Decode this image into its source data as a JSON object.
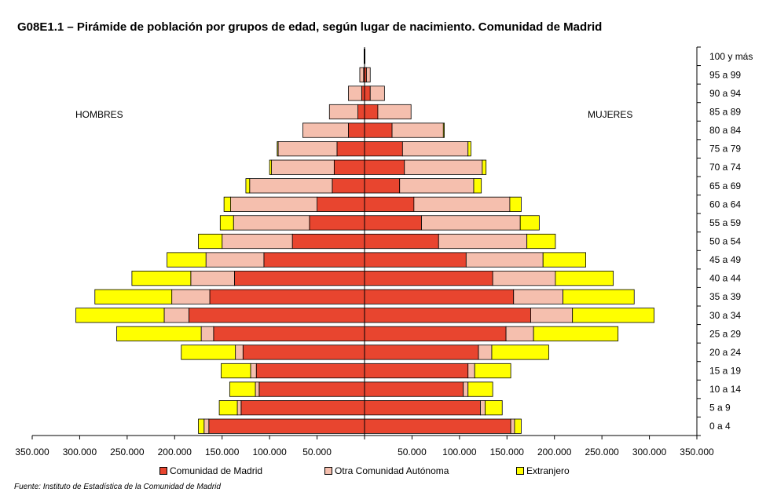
{
  "title": "G08E1.1 – Pirámide de población por grupos de edad, según lugar de nacimiento. Comunidad de Madrid",
  "source": "Fuente: Instituto de Estadística de la Comunidad de Madrid",
  "colors": {
    "madrid": "#e8452f",
    "otra": "#f5bfae",
    "extranjero": "#ffff00"
  },
  "chart_data": {
    "type": "bar",
    "orientation": "horizontal-population-pyramid",
    "side_labels": {
      "left": "HOMBRES",
      "right": "MUJERES"
    },
    "categories": [
      "0 a 4",
      "5 a 9",
      "10 a 14",
      "15 a 19",
      "20 a 24",
      "25 a 29",
      "30 a 34",
      "35 a 39",
      "40 a 44",
      "45 a 49",
      "50 a 54",
      "55 a 59",
      "60 a 64",
      "65 a 69",
      "70 a 74",
      "75 a 79",
      "80 a 84",
      "85 a 89",
      "90 a 94",
      "95 a 99",
      "100 y más"
    ],
    "xlim": [
      -350000,
      350000
    ],
    "x_tick_values": [
      -350000,
      -300000,
      -250000,
      -200000,
      -150000,
      -100000,
      -50000,
      50000,
      100000,
      150000,
      200000,
      250000,
      300000,
      350000
    ],
    "x_tick_labels": [
      "350.000",
      "300.000",
      "250.000",
      "200.000",
      "150.000",
      "100.000",
      "50.000",
      "50.000",
      "100.000",
      "150.000",
      "200.000",
      "250.000",
      "300.000",
      "350.000"
    ],
    "series": [
      {
        "name": "Comunidad de Madrid",
        "key": "madrid",
        "hombres": [
          164000,
          130000,
          111000,
          114000,
          128000,
          159000,
          185000,
          163000,
          137000,
          106000,
          76000,
          58000,
          50000,
          34000,
          32000,
          29000,
          17000,
          7000,
          3000,
          1000,
          500
        ],
        "mujeres": [
          154000,
          122000,
          104000,
          109000,
          120000,
          149000,
          175000,
          157000,
          135000,
          107000,
          78000,
          60000,
          52000,
          37000,
          42000,
          40000,
          29000,
          14000,
          6000,
          2000,
          500
        ]
      },
      {
        "name": "Otra Comunidad Autónoma",
        "key": "otra",
        "hombres": [
          5000,
          4000,
          4000,
          6000,
          8000,
          13000,
          26000,
          40000,
          46000,
          61000,
          74000,
          80000,
          91000,
          87000,
          66000,
          62000,
          48000,
          30000,
          14000,
          4000,
          0
        ],
        "mujeres": [
          4000,
          5000,
          5000,
          7000,
          14000,
          29000,
          44000,
          52000,
          66000,
          81000,
          93000,
          104000,
          101000,
          78000,
          82000,
          69000,
          54000,
          35000,
          15000,
          4000,
          0
        ]
      },
      {
        "name": "Extranjero",
        "key": "extranjero",
        "hombres": [
          6000,
          19000,
          27000,
          31000,
          57000,
          89000,
          93000,
          81000,
          62000,
          41000,
          25000,
          14000,
          7000,
          4000,
          2000,
          1000,
          0,
          0,
          0,
          0,
          0
        ],
        "mujeres": [
          7000,
          18000,
          26000,
          38000,
          60000,
          89000,
          86000,
          75000,
          61000,
          45000,
          30000,
          20000,
          12000,
          8000,
          4000,
          3000,
          1000,
          0,
          0,
          0,
          0
        ]
      }
    ]
  }
}
